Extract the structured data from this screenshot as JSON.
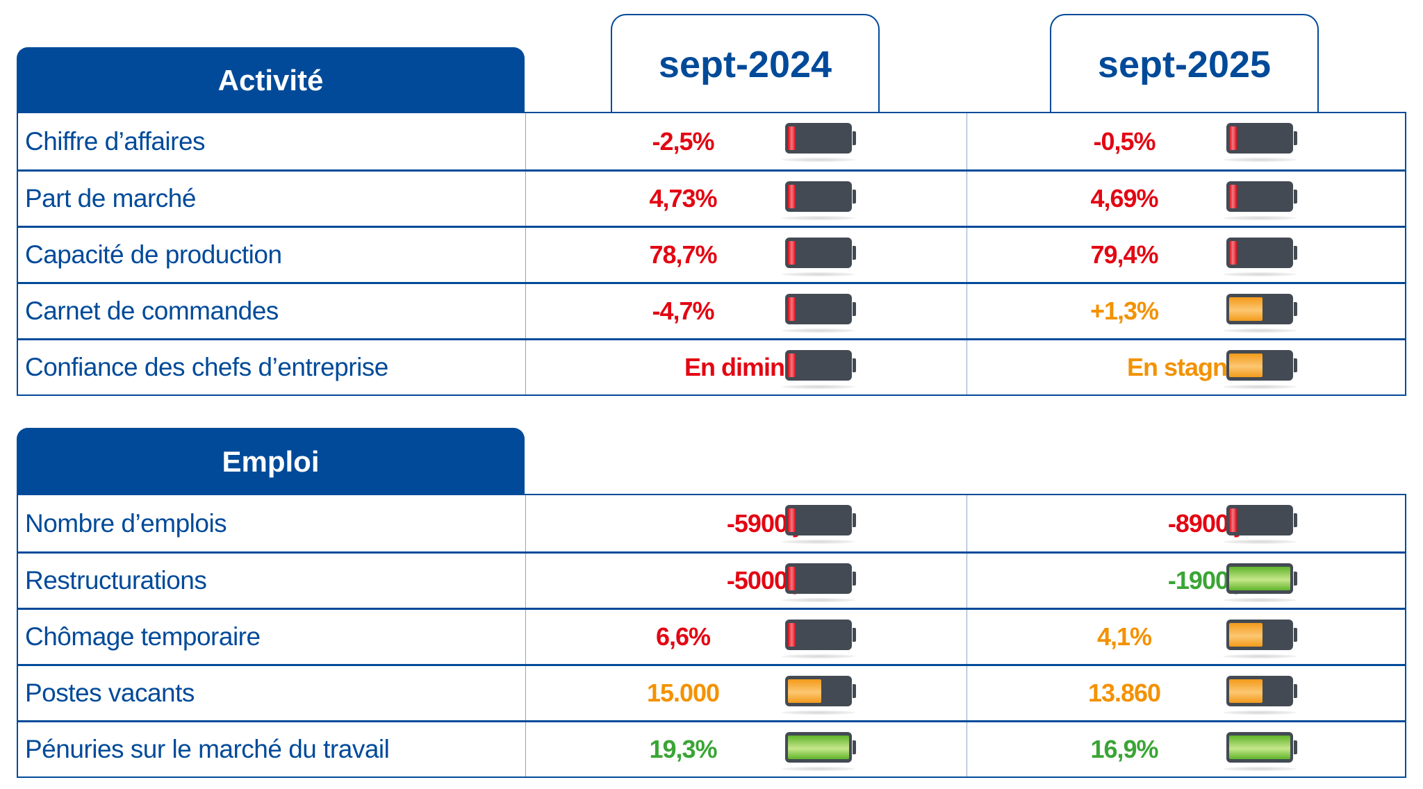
{
  "colors": {
    "blue": "#004a99",
    "red": "#e30613",
    "orange": "#f39200",
    "green": "#3aa535"
  },
  "periods": [
    "sept-2024",
    "sept-2025"
  ],
  "sections": [
    {
      "title": "Activité",
      "rows": [
        {
          "label": "Chiffre d’affaires",
          "values": [
            {
              "text": "-2,5%",
              "status": "red",
              "level": 0.12
            },
            {
              "text": "-0,5%",
              "status": "red",
              "level": 0.12
            }
          ]
        },
        {
          "label": "Part de marché",
          "values": [
            {
              "text": "4,73%",
              "status": "red",
              "level": 0.12
            },
            {
              "text": "4,69%",
              "status": "red",
              "level": 0.12
            }
          ]
        },
        {
          "label": "Capacité de production",
          "values": [
            {
              "text": "78,7%",
              "status": "red",
              "level": 0.12
            },
            {
              "text": "79,4%",
              "status": "red",
              "level": 0.12
            }
          ]
        },
        {
          "label": "Carnet de commandes",
          "values": [
            {
              "text": "-4,7%",
              "status": "red",
              "level": 0.12
            },
            {
              "text": "+1,3%",
              "status": "orange",
              "level": 0.55
            }
          ]
        },
        {
          "label": "Confiance des chefs d’entreprise",
          "values": [
            {
              "text": "En diminution",
              "status": "red",
              "level": 0.12
            },
            {
              "text": "En stagnation",
              "status": "orange",
              "level": 0.55
            }
          ]
        }
      ]
    },
    {
      "title": "Emploi",
      "rows": [
        {
          "label": "Nombre d’emplois",
          "values": [
            {
              "text": "-5900 jobs",
              "status": "red",
              "level": 0.12
            },
            {
              "text": "-8900 jobs",
              "status": "red",
              "level": 0.12
            }
          ]
        },
        {
          "label": "Restructurations",
          "values": [
            {
              "text": "-5000 jobs",
              "status": "red",
              "level": 0.12
            },
            {
              "text": "-1900 jobs",
              "status": "green",
              "level": 1
            }
          ]
        },
        {
          "label": "Chômage temporaire",
          "values": [
            {
              "text": "6,6%",
              "status": "red",
              "level": 0.12
            },
            {
              "text": "4,1%",
              "status": "orange",
              "level": 0.55
            }
          ]
        },
        {
          "label": "Postes vacants",
          "values": [
            {
              "text": "15.000",
              "status": "orange",
              "level": 0.55
            },
            {
              "text": "13.860",
              "status": "orange",
              "level": 0.55
            }
          ]
        },
        {
          "label": "Pénuries sur le marché du travail",
          "values": [
            {
              "text": "19,3%",
              "status": "green",
              "level": 1
            },
            {
              "text": "16,9%",
              "status": "green",
              "level": 1
            }
          ]
        }
      ]
    }
  ]
}
